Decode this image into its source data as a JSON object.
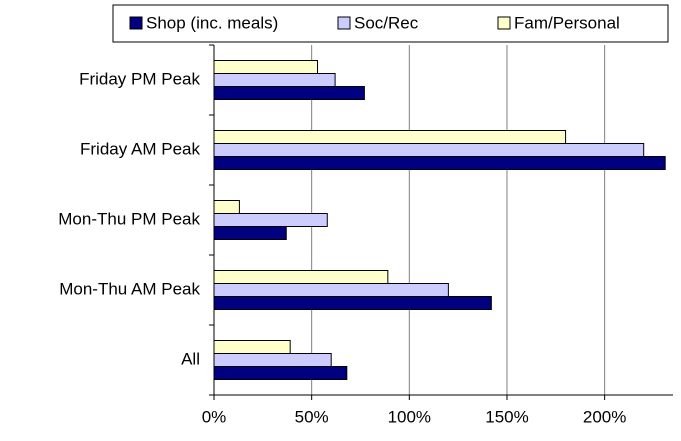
{
  "chart_data": {
    "type": "hbar",
    "categories": [
      "All",
      "Mon-Thu AM Peak",
      "Mon-Thu PM Peak",
      "Friday AM Peak",
      "Friday PM Peak"
    ],
    "series": [
      {
        "name": "Shop (inc. meals)",
        "color": "#000080",
        "values": [
          68,
          142,
          37,
          231,
          77
        ]
      },
      {
        "name": "Soc/Rec",
        "color": "#ccccff",
        "values": [
          60,
          120,
          58,
          220,
          62
        ]
      },
      {
        "name": "Fam/Personal",
        "color": "#ffffcc",
        "values": [
          39,
          89,
          13,
          180,
          53
        ]
      }
    ],
    "xlim": [
      0,
      235
    ],
    "xticks": [
      {
        "value": 0,
        "label": "0%"
      },
      {
        "value": 50,
        "label": "50%"
      },
      {
        "value": 100,
        "label": "100%"
      },
      {
        "value": 150,
        "label": "150%"
      },
      {
        "value": 200,
        "label": "200%"
      }
    ],
    "grid": true,
    "legend": "top"
  }
}
